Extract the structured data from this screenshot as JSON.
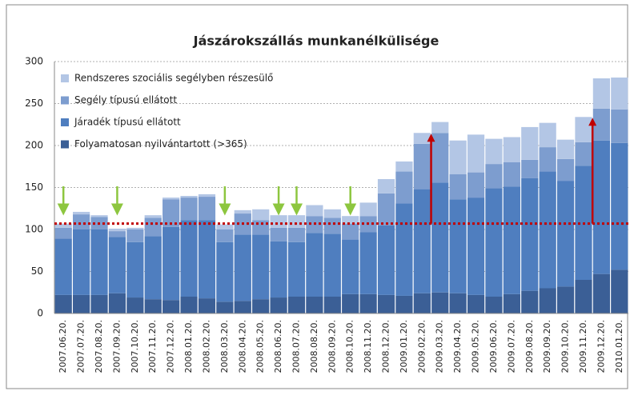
{
  "chart_data": {
    "type": "stacked_bar",
    "title": "Jászárokszállás munkanélkülisége",
    "categories": [
      "2007.06.20.",
      "2007.07.20.",
      "2007.08.20.",
      "2007.09.20.",
      "2007.10.20.",
      "2007.11.20.",
      "2007.12.20.",
      "2008.01.20.",
      "2008.02.20.",
      "2008.03.20.",
      "2008.04.20.",
      "2008.05.20.",
      "2008.06.20.",
      "2008.07.20.",
      "2008.08.20.",
      "2008.09.20.",
      "2008.10.20.",
      "2008.11.20.",
      "2008.12.20.",
      "2009.01.20.",
      "2009.02.20.",
      "2009.03.20.",
      "2009.04.20.",
      "2009.05.20.",
      "2009.06.20.",
      "2009.07.20.",
      "2009.08.20.",
      "2009.09.20.",
      "2009.10.20.",
      "2009.11.20.",
      "2009.12.20.",
      "2010.01.20."
    ],
    "series": [
      {
        "name": "Folyamatosan nyilvántartott (>365)",
        "color": "#3b5f96",
        "values": [
          22,
          22,
          22,
          24,
          19,
          17,
          16,
          20,
          18,
          14,
          15,
          17,
          19,
          20,
          20,
          20,
          23,
          23,
          22,
          21,
          24,
          25,
          24,
          22,
          20,
          23,
          27,
          30,
          32,
          40,
          47,
          52
        ]
      },
      {
        "name": "Járadék típusú ellátott",
        "color": "#4f7ebf",
        "values": [
          67,
          78,
          78,
          67,
          66,
          75,
          87,
          91,
          93,
          71,
          79,
          77,
          67,
          65,
          76,
          75,
          65,
          74,
          83,
          110,
          124,
          131,
          112,
          116,
          129,
          128,
          134,
          139,
          126,
          136,
          159,
          151
        ]
      },
      {
        "name": "Segély típusú ellátott",
        "color": "#7d9dcf",
        "values": [
          13,
          18,
          15,
          7,
          15,
          22,
          33,
          27,
          28,
          15,
          25,
          17,
          16,
          17,
          20,
          19,
          19,
          19,
          38,
          38,
          54,
          59,
          30,
          30,
          29,
          29,
          22,
          29,
          26,
          28,
          38,
          40
        ]
      },
      {
        "name": "Rendszeres szociális segélyben részesülő",
        "color": "#b3c6e5",
        "values": [
          5,
          3,
          2,
          3,
          2,
          3,
          2,
          2,
          3,
          6,
          4,
          13,
          15,
          15,
          13,
          10,
          9,
          16,
          17,
          12,
          13,
          13,
          40,
          45,
          30,
          30,
          39,
          29,
          23,
          30,
          36,
          38
        ]
      }
    ],
    "ylim": [
      0,
      300
    ],
    "yticks": [
      0,
      50,
      100,
      150,
      200,
      250,
      300
    ],
    "grid": true,
    "reference_line": 107,
    "green_arrows": [
      "2007.06.20.",
      "2007.09.20.",
      "2008.03.20.",
      "2008.06.20.",
      "2008.07.20.",
      "2008.10.20."
    ],
    "red_arrows": [
      "2009.02.20.",
      "2009.11.20."
    ]
  }
}
